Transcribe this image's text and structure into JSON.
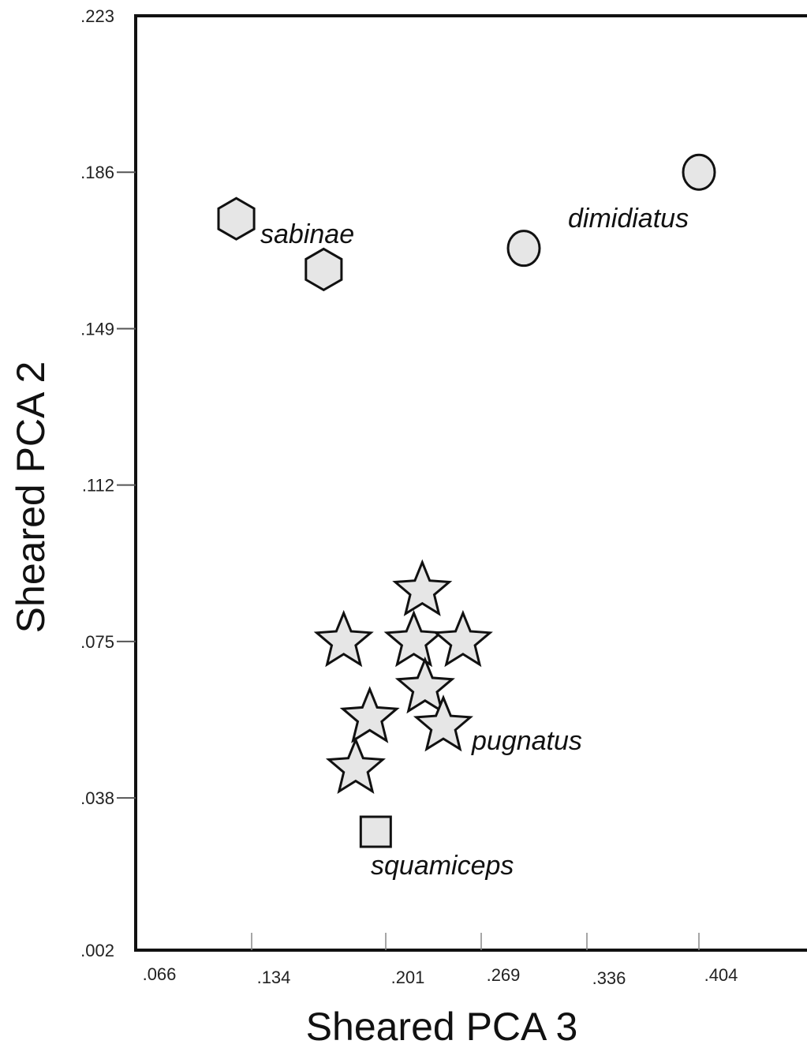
{
  "chart_data": {
    "type": "scatter",
    "xlabel": "Sheared PCA 3",
    "ylabel": "Sheared PCA 2",
    "x_tick_labels": [
      ".066",
      ".134",
      ".201",
      ".269",
      ".336",
      ".404"
    ],
    "x_ticks": [
      0.066,
      0.134,
      0.201,
      0.269,
      0.336,
      0.404
    ],
    "y_tick_labels": [
      ".223",
      ".186",
      ".149",
      ".112",
      ".075",
      ".038",
      ".002"
    ],
    "y_ticks": [
      0.223,
      0.186,
      0.149,
      0.112,
      0.075,
      0.038,
      0.002
    ],
    "xlim": [
      0.066,
      0.488
    ],
    "ylim": [
      0.002,
      0.223
    ],
    "grid": false,
    "legend": "none",
    "marker_fill": "#e6e6e6",
    "marker_stroke": "#111111",
    "series": [
      {
        "name": "sabinae",
        "marker": "hexagon",
        "points": [
          {
            "x": 0.125,
            "y": 0.175
          },
          {
            "x": 0.17,
            "y": 0.163
          }
        ]
      },
      {
        "name": "dimidiatus",
        "marker": "circle",
        "points": [
          {
            "x": 0.296,
            "y": 0.168
          },
          {
            "x": 0.404,
            "y": 0.186
          }
        ]
      },
      {
        "name": "pugnatus",
        "marker": "star",
        "points": [
          {
            "x": 0.227,
            "y": 0.087
          },
          {
            "x": 0.18,
            "y": 0.075
          },
          {
            "x": 0.221,
            "y": 0.075
          },
          {
            "x": 0.256,
            "y": 0.075
          },
          {
            "x": 0.229,
            "y": 0.064
          },
          {
            "x": 0.193,
            "y": 0.057
          },
          {
            "x": 0.242,
            "y": 0.055
          },
          {
            "x": 0.186,
            "y": 0.045
          }
        ]
      },
      {
        "name": "squamiceps",
        "marker": "square",
        "points": [
          {
            "x": 0.196,
            "y": 0.03
          }
        ]
      }
    ]
  }
}
